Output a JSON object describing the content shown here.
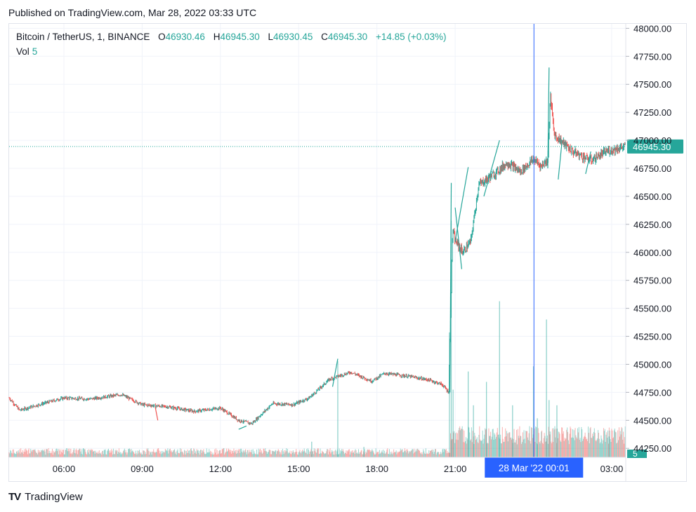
{
  "header": {
    "published": "Published on TradingView.com, Mar 28, 2022 03:33 UTC"
  },
  "legend": {
    "symbol": "Bitcoin / TetherUS, 1, BINANCE",
    "open_key": "O",
    "open": "46930.46",
    "high_key": "H",
    "high": "46945.30",
    "low_key": "L",
    "low": "46930.45",
    "close_key": "C",
    "close": "46945.30",
    "change": "+14.85 (+0.03%)",
    "vol_label": "Vol",
    "vol_value": "5"
  },
  "brand": {
    "logo_text": "TV",
    "name": "TradingView"
  },
  "colors": {
    "up": "#26a69a",
    "down": "#ef5350",
    "crosshair": "#2962ff",
    "last_price": "#26a69a"
  },
  "chart_data": {
    "type": "candlestick",
    "y_ticks": [
      "48000.00",
      "47750.00",
      "47500.00",
      "47250.00",
      "47000.00",
      "46750.00",
      "46500.00",
      "46250.00",
      "46000.00",
      "45750.00",
      "45500.00",
      "45250.00",
      "45000.00",
      "44750.00",
      "44500.00",
      "44250.00"
    ],
    "y_tick_values": [
      48000,
      47750,
      47500,
      47250,
      47000,
      46750,
      46500,
      46250,
      46000,
      45750,
      45500,
      45250,
      45000,
      44750,
      44500,
      44250
    ],
    "ylim": [
      44170,
      48040
    ],
    "x_ticks": [
      "06:00",
      "09:00",
      "12:00",
      "15:00",
      "18:00",
      "21:00",
      "03:00"
    ],
    "x_tick_hours": [
      6,
      9,
      12,
      15,
      18,
      21,
      27
    ],
    "xlim_hours": [
      3.9,
      27.54
    ],
    "last_price": 46945.3,
    "last_price_label": "46945.30",
    "volume_label": "5",
    "crosshair_label": "28 Mar '22   00:01",
    "crosshair_hour": 24.02,
    "price_path_anchors": [
      [
        3.9,
        44700
      ],
      [
        4.3,
        44590
      ],
      [
        5.2,
        44650
      ],
      [
        6.0,
        44700
      ],
      [
        7.0,
        44690
      ],
      [
        8.2,
        44730
      ],
      [
        9.0,
        44640
      ],
      [
        10.0,
        44620
      ],
      [
        11.0,
        44580
      ],
      [
        12.0,
        44610
      ],
      [
        12.7,
        44500
      ],
      [
        13.2,
        44470
      ],
      [
        14.0,
        44650
      ],
      [
        14.8,
        44640
      ],
      [
        15.4,
        44700
      ],
      [
        16.2,
        44870
      ],
      [
        17.0,
        44930
      ],
      [
        17.8,
        44850
      ],
      [
        18.3,
        44920
      ],
      [
        19.3,
        44890
      ],
      [
        20.0,
        44860
      ],
      [
        20.5,
        44820
      ],
      [
        20.75,
        44750
      ],
      [
        20.9,
        46200
      ],
      [
        21.0,
        46100
      ],
      [
        21.3,
        46000
      ],
      [
        21.6,
        46100
      ],
      [
        21.9,
        46600
      ],
      [
        22.5,
        46700
      ],
      [
        23.0,
        46800
      ],
      [
        23.5,
        46720
      ],
      [
        24.0,
        46830
      ],
      [
        24.3,
        46770
      ],
      [
        24.55,
        46830
      ],
      [
        24.65,
        47400
      ],
      [
        24.8,
        47050
      ],
      [
        25.5,
        46900
      ],
      [
        26.2,
        46820
      ],
      [
        26.8,
        46900
      ],
      [
        27.5,
        46945
      ]
    ],
    "price_spikes": [
      [
        20.85,
        46620,
        20.8,
        44750
      ],
      [
        21.0,
        46400,
        21.25,
        45850
      ],
      [
        21.5,
        46760,
        21.0,
        46100
      ],
      [
        22.7,
        47000,
        22.1,
        46500
      ],
      [
        24.6,
        47650,
        24.55,
        46750
      ],
      [
        25.1,
        47000,
        24.95,
        46650
      ],
      [
        26.2,
        46900,
        26.0,
        46700
      ],
      [
        16.5,
        45050,
        16.3,
        44800
      ],
      [
        13.0,
        44450,
        12.7,
        44420
      ],
      [
        9.6,
        44500,
        9.5,
        44620
      ]
    ],
    "volume_spikes": [
      [
        16.5,
        0.37
      ],
      [
        20.78,
        0.48
      ],
      [
        20.85,
        0.91
      ],
      [
        20.92,
        0.26
      ],
      [
        21.5,
        0.33
      ],
      [
        21.7,
        0.2
      ],
      [
        22.2,
        0.29
      ],
      [
        22.7,
        0.6
      ],
      [
        23.2,
        0.2
      ],
      [
        24.0,
        0.35
      ],
      [
        24.15,
        0.15
      ],
      [
        24.5,
        0.53
      ],
      [
        24.6,
        0.22
      ],
      [
        24.9,
        0.2
      ],
      [
        15.5,
        0.06
      ],
      [
        17.5,
        0.04
      ],
      [
        26.9,
        0.08
      ]
    ]
  }
}
